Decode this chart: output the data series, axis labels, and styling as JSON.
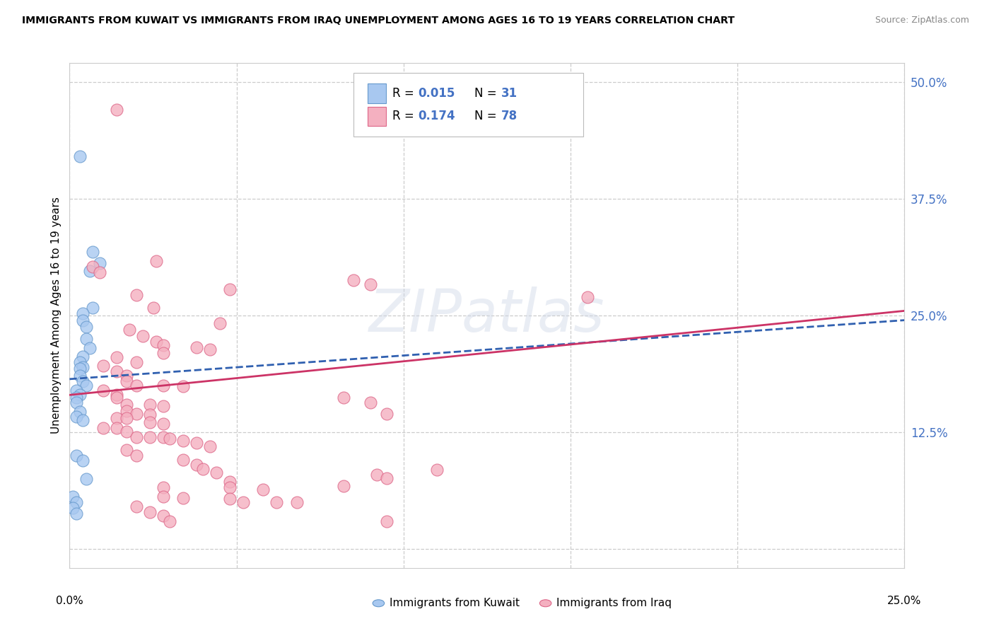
{
  "title": "IMMIGRANTS FROM KUWAIT VS IMMIGRANTS FROM IRAQ UNEMPLOYMENT AMONG AGES 16 TO 19 YEARS CORRELATION CHART",
  "source": "Source: ZipAtlas.com",
  "ylabel": "Unemployment Among Ages 16 to 19 years",
  "xlim": [
    0.0,
    0.25
  ],
  "ylim": [
    -0.02,
    0.52
  ],
  "ytick_vals": [
    0.0,
    0.125,
    0.25,
    0.375,
    0.5
  ],
  "ytick_labels": [
    "",
    "12.5%",
    "25.0%",
    "37.5%",
    "50.0%"
  ],
  "background_color": "#ffffff",
  "grid_color": "#cccccc",
  "watermark": "ZIPatlas",
  "kuwait_fill": "#a8c8f0",
  "kuwait_edge": "#6699cc",
  "iraq_fill": "#f4b0c0",
  "iraq_edge": "#dd6688",
  "kuwait_line_color": "#3060b0",
  "iraq_line_color": "#cc3366",
  "right_tick_color": "#4472c4",
  "kuwait_points": [
    [
      0.003,
      0.42
    ],
    [
      0.007,
      0.318
    ],
    [
      0.009,
      0.306
    ],
    [
      0.006,
      0.298
    ],
    [
      0.007,
      0.258
    ],
    [
      0.004,
      0.252
    ],
    [
      0.004,
      0.245
    ],
    [
      0.005,
      0.238
    ],
    [
      0.005,
      0.225
    ],
    [
      0.006,
      0.215
    ],
    [
      0.004,
      0.206
    ],
    [
      0.003,
      0.2
    ],
    [
      0.004,
      0.195
    ],
    [
      0.003,
      0.193
    ],
    [
      0.003,
      0.186
    ],
    [
      0.004,
      0.18
    ],
    [
      0.005,
      0.175
    ],
    [
      0.002,
      0.17
    ],
    [
      0.003,
      0.165
    ],
    [
      0.002,
      0.162
    ],
    [
      0.002,
      0.157
    ],
    [
      0.003,
      0.147
    ],
    [
      0.002,
      0.142
    ],
    [
      0.004,
      0.138
    ],
    [
      0.002,
      0.1
    ],
    [
      0.004,
      0.095
    ],
    [
      0.005,
      0.075
    ],
    [
      0.001,
      0.056
    ],
    [
      0.002,
      0.05
    ],
    [
      0.001,
      0.044
    ],
    [
      0.002,
      0.038
    ]
  ],
  "iraq_points": [
    [
      0.014,
      0.47
    ],
    [
      0.026,
      0.308
    ],
    [
      0.007,
      0.302
    ],
    [
      0.009,
      0.296
    ],
    [
      0.085,
      0.288
    ],
    [
      0.09,
      0.283
    ],
    [
      0.048,
      0.278
    ],
    [
      0.02,
      0.272
    ],
    [
      0.025,
      0.258
    ],
    [
      0.045,
      0.242
    ],
    [
      0.018,
      0.235
    ],
    [
      0.022,
      0.228
    ],
    [
      0.026,
      0.222
    ],
    [
      0.028,
      0.218
    ],
    [
      0.038,
      0.216
    ],
    [
      0.042,
      0.214
    ],
    [
      0.028,
      0.21
    ],
    [
      0.014,
      0.205
    ],
    [
      0.02,
      0.2
    ],
    [
      0.01,
      0.196
    ],
    [
      0.014,
      0.19
    ],
    [
      0.017,
      0.186
    ],
    [
      0.017,
      0.18
    ],
    [
      0.02,
      0.175
    ],
    [
      0.028,
      0.175
    ],
    [
      0.034,
      0.174
    ],
    [
      0.01,
      0.17
    ],
    [
      0.014,
      0.165
    ],
    [
      0.014,
      0.162
    ],
    [
      0.017,
      0.155
    ],
    [
      0.024,
      0.155
    ],
    [
      0.028,
      0.153
    ],
    [
      0.017,
      0.148
    ],
    [
      0.02,
      0.145
    ],
    [
      0.024,
      0.144
    ],
    [
      0.014,
      0.14
    ],
    [
      0.017,
      0.14
    ],
    [
      0.024,
      0.136
    ],
    [
      0.028,
      0.134
    ],
    [
      0.01,
      0.13
    ],
    [
      0.014,
      0.13
    ],
    [
      0.017,
      0.126
    ],
    [
      0.02,
      0.12
    ],
    [
      0.024,
      0.12
    ],
    [
      0.028,
      0.12
    ],
    [
      0.03,
      0.118
    ],
    [
      0.034,
      0.116
    ],
    [
      0.038,
      0.114
    ],
    [
      0.042,
      0.11
    ],
    [
      0.017,
      0.106
    ],
    [
      0.02,
      0.1
    ],
    [
      0.034,
      0.096
    ],
    [
      0.038,
      0.09
    ],
    [
      0.04,
      0.086
    ],
    [
      0.044,
      0.082
    ],
    [
      0.082,
      0.162
    ],
    [
      0.09,
      0.157
    ],
    [
      0.092,
      0.08
    ],
    [
      0.095,
      0.076
    ],
    [
      0.048,
      0.072
    ],
    [
      0.028,
      0.066
    ],
    [
      0.048,
      0.066
    ],
    [
      0.058,
      0.064
    ],
    [
      0.028,
      0.056
    ],
    [
      0.034,
      0.055
    ],
    [
      0.048,
      0.054
    ],
    [
      0.052,
      0.05
    ],
    [
      0.062,
      0.05
    ],
    [
      0.068,
      0.05
    ],
    [
      0.02,
      0.046
    ],
    [
      0.024,
      0.04
    ],
    [
      0.028,
      0.036
    ],
    [
      0.03,
      0.03
    ],
    [
      0.095,
      0.03
    ],
    [
      0.095,
      0.145
    ],
    [
      0.155,
      0.27
    ],
    [
      0.082,
      0.068
    ],
    [
      0.11,
      0.085
    ]
  ]
}
